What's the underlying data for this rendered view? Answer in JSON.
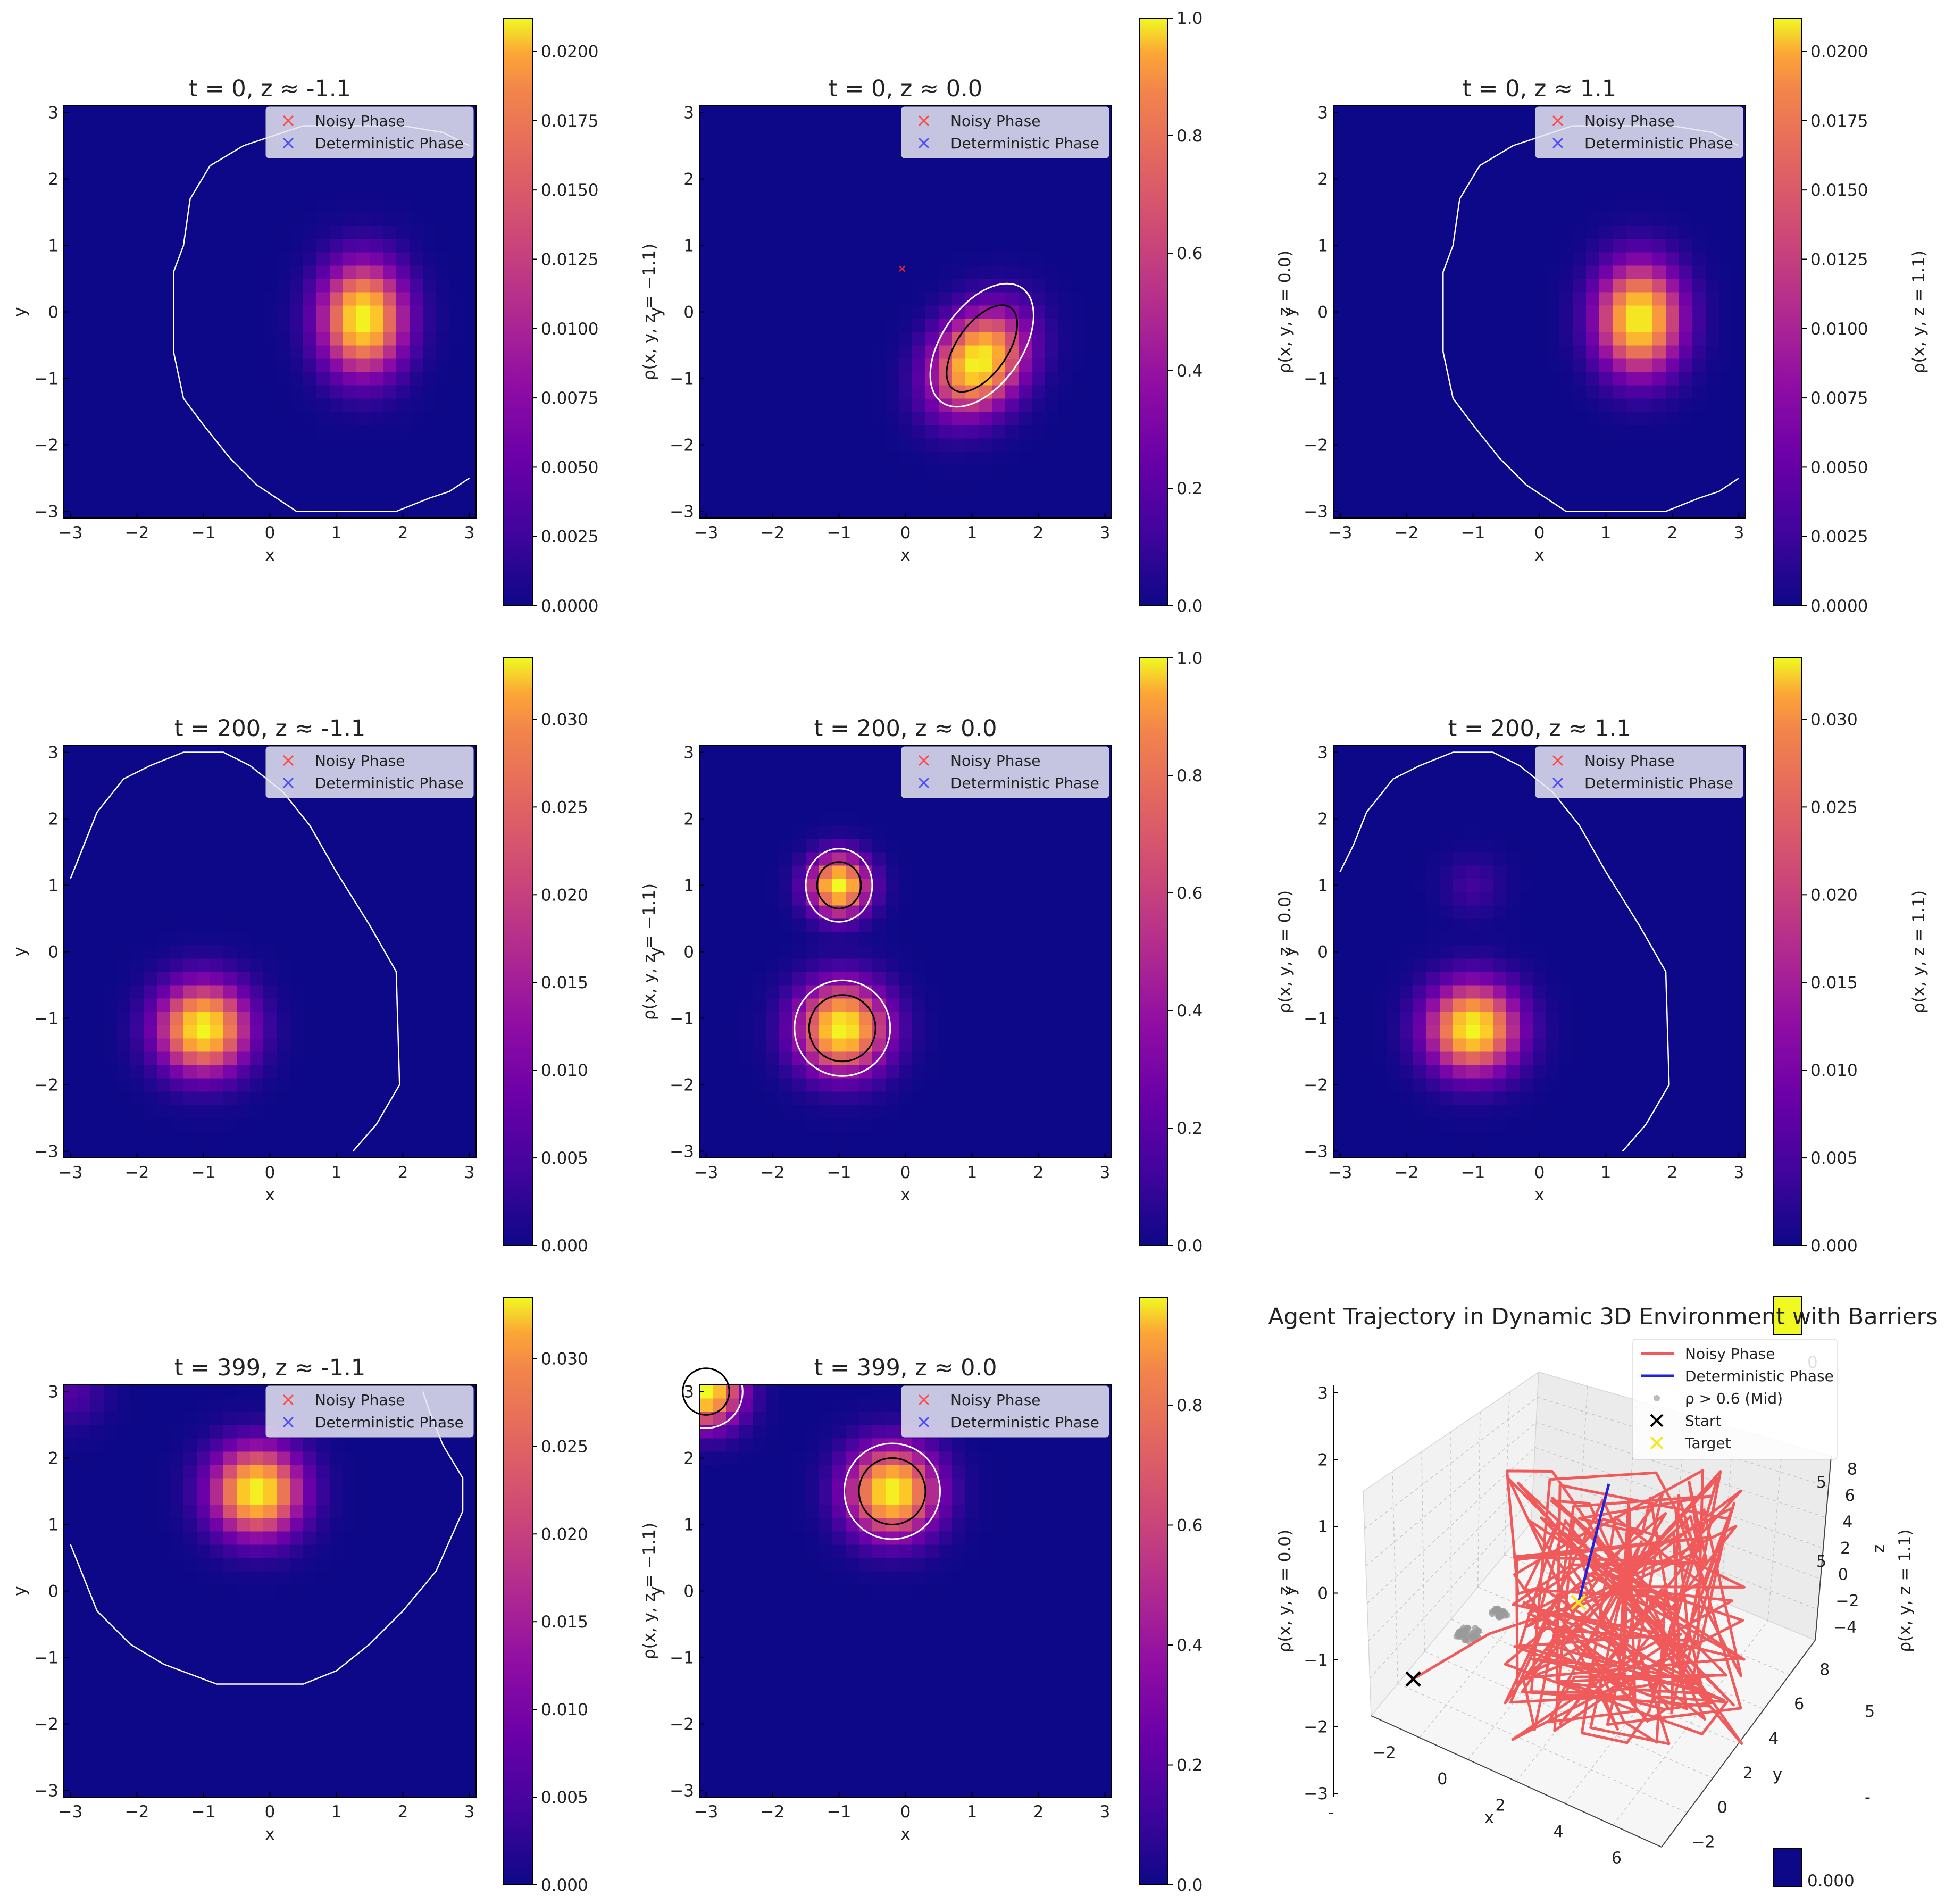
{
  "figure": {
    "colormap": "plasma",
    "legend": [
      {
        "label": "Noisy Phase",
        "color": "#ff4a4a",
        "marker": "x"
      },
      {
        "label": "Deterministic Phase",
        "color": "#4a4aff",
        "marker": "x"
      }
    ],
    "contour_colors": {
      "outer": "#ffffff",
      "inner": "#000000"
    },
    "barrier_color": "#ffffff"
  },
  "chart_data": [
    {
      "id": "t0-zneg",
      "type": "heatmap",
      "title": "t = 0, z ≈ -1.1",
      "xlabel": "x",
      "ylabel": "y",
      "cbar_label": "ρ(x, y, z = −1.1)",
      "xlim": [
        -3.1,
        3.1
      ],
      "ylim": [
        -3.1,
        3.1
      ],
      "xticks": [
        -3,
        -2,
        -1,
        0,
        1,
        2,
        3
      ],
      "yticks": [
        -3,
        -2,
        -1,
        0,
        1,
        2,
        3
      ],
      "cbar_range": [
        0,
        0.0212
      ],
      "cbar_ticks": [
        "0.0000",
        "0.0025",
        "0.0050",
        "0.0075",
        "0.0100",
        "0.0125",
        "0.0150",
        "0.0175",
        "0.0200"
      ],
      "blobs": [
        {
          "cx": 1.4,
          "cy": -0.1,
          "sx": 0.42,
          "sy": 0.55,
          "amp": 0.0212
        }
      ],
      "barrier": [
        [
          1.9,
          -3.0
        ],
        [
          0.4,
          -3.0
        ],
        [
          -0.2,
          -2.6
        ],
        [
          -0.6,
          -2.2
        ],
        [
          -1.0,
          -1.7
        ],
        [
          -1.3,
          -1.3
        ],
        [
          -1.45,
          -0.6
        ],
        [
          -1.45,
          0.6
        ],
        [
          -1.3,
          1.0
        ],
        [
          -1.2,
          1.7
        ],
        [
          -0.9,
          2.2
        ],
        [
          -0.4,
          2.5
        ],
        [
          0.5,
          2.8
        ],
        [
          2.0,
          2.8
        ],
        [
          2.6,
          2.7
        ],
        [
          3.0,
          2.5
        ]
      ],
      "barrier2": [
        [
          1.9,
          -3.0
        ],
        [
          2.4,
          -2.8
        ],
        [
          2.7,
          -2.7
        ],
        [
          3.0,
          -2.5
        ]
      ],
      "contours": []
    },
    {
      "id": "t0-z0",
      "type": "heatmap",
      "title": "t = 0, z ≈ 0.0",
      "xlabel": "x",
      "ylabel": "y",
      "cbar_label": "ρ(x, y, z = 0.0)",
      "xlim": [
        -3.1,
        3.1
      ],
      "ylim": [
        -3.1,
        3.1
      ],
      "xticks": [
        -3,
        -2,
        -1,
        0,
        1,
        2,
        3
      ],
      "yticks": [
        -3,
        -2,
        -1,
        0,
        1,
        2,
        3
      ],
      "cbar_range": [
        0,
        1.0
      ],
      "cbar_ticks": [
        "0.0",
        "0.2",
        "0.4",
        "0.6",
        "0.8",
        "1.0"
      ],
      "blobs": [
        {
          "cx": 1.1,
          "cy": -0.75,
          "sx": 0.42,
          "sy": 0.55,
          "amp": 1.0,
          "rot": -35
        }
      ],
      "contours": [
        {
          "color": "outer",
          "cx": 1.15,
          "cy": -0.5,
          "rx": 0.6,
          "ry": 1.05,
          "rot": 35
        },
        {
          "color": "inner",
          "cx": 1.15,
          "cy": -0.55,
          "rx": 0.38,
          "ry": 0.75,
          "rot": 35
        }
      ],
      "noisy_marker": [
        -0.05,
        0.65
      ]
    },
    {
      "id": "t0-zpos",
      "type": "heatmap",
      "title": "t = 0, z ≈ 1.1",
      "xlabel": "x",
      "ylabel": "y",
      "cbar_label": "ρ(x, y, z = 1.1)",
      "xlim": [
        -3.1,
        3.1
      ],
      "ylim": [
        -3.1,
        3.1
      ],
      "xticks": [
        -3,
        -2,
        -1,
        0,
        1,
        2,
        3
      ],
      "yticks": [
        -3,
        -2,
        -1,
        0,
        1,
        2,
        3
      ],
      "cbar_range": [
        0,
        0.0212
      ],
      "cbar_ticks": [
        "0.0000",
        "0.0025",
        "0.0050",
        "0.0075",
        "0.0100",
        "0.0125",
        "0.0150",
        "0.0175",
        "0.0200"
      ],
      "blobs": [
        {
          "cx": 1.5,
          "cy": -0.1,
          "sx": 0.42,
          "sy": 0.55,
          "amp": 0.0212
        }
      ],
      "barrier": [
        [
          1.9,
          -3.0
        ],
        [
          0.4,
          -3.0
        ],
        [
          -0.2,
          -2.6
        ],
        [
          -0.6,
          -2.2
        ],
        [
          -1.0,
          -1.7
        ],
        [
          -1.3,
          -1.3
        ],
        [
          -1.45,
          -0.6
        ],
        [
          -1.45,
          0.6
        ],
        [
          -1.3,
          1.0
        ],
        [
          -1.2,
          1.7
        ],
        [
          -0.9,
          2.2
        ],
        [
          -0.4,
          2.5
        ],
        [
          0.5,
          2.8
        ],
        [
          2.0,
          2.8
        ],
        [
          2.6,
          2.7
        ],
        [
          3.0,
          2.5
        ]
      ],
      "barrier2": [
        [
          1.9,
          -3.0
        ],
        [
          2.4,
          -2.8
        ],
        [
          2.7,
          -2.7
        ],
        [
          3.0,
          -2.5
        ]
      ],
      "contours": []
    },
    {
      "id": "t200-zneg",
      "type": "heatmap",
      "title": "t = 200, z ≈ -1.1",
      "xlabel": "x",
      "ylabel": "y",
      "cbar_label": "ρ(x, y, z = −1.1)",
      "xlim": [
        -3.1,
        3.1
      ],
      "ylim": [
        -3.1,
        3.1
      ],
      "xticks": [
        -3,
        -2,
        -1,
        0,
        1,
        2,
        3
      ],
      "yticks": [
        -3,
        -2,
        -1,
        0,
        1,
        2,
        3
      ],
      "cbar_range": [
        0,
        0.0335
      ],
      "cbar_ticks": [
        "0.000",
        "0.005",
        "0.010",
        "0.015",
        "0.020",
        "0.025",
        "0.030"
      ],
      "blobs": [
        {
          "cx": -1.0,
          "cy": -1.15,
          "sx": 0.45,
          "sy": 0.45,
          "amp": 0.0335
        }
      ],
      "barrier": [
        [
          -3.0,
          1.1
        ],
        [
          -2.8,
          1.6
        ],
        [
          -2.6,
          2.1
        ],
        [
          -2.2,
          2.6
        ],
        [
          -1.8,
          2.8
        ],
        [
          -1.3,
          3.0
        ],
        [
          -0.7,
          3.0
        ],
        [
          -0.3,
          2.8
        ],
        [
          0.2,
          2.4
        ],
        [
          0.6,
          1.9
        ],
        [
          1.0,
          1.2
        ],
        [
          1.5,
          0.4
        ],
        [
          1.9,
          -0.3
        ],
        [
          1.95,
          -2.0
        ],
        [
          1.6,
          -2.6
        ],
        [
          1.25,
          -3.0
        ]
      ],
      "contours": []
    },
    {
      "id": "t200-z0",
      "type": "heatmap",
      "title": "t = 200, z ≈ 0.0",
      "xlabel": "x",
      "ylabel": "y",
      "cbar_label": "ρ(x, y, z = 0.0)",
      "xlim": [
        -3.1,
        3.1
      ],
      "ylim": [
        -3.1,
        3.1
      ],
      "xticks": [
        -3,
        -2,
        -1,
        0,
        1,
        2,
        3
      ],
      "yticks": [
        -3,
        -2,
        -1,
        0,
        1,
        2,
        3
      ],
      "cbar_range": [
        0,
        1.0
      ],
      "cbar_ticks": [
        "0.0",
        "0.2",
        "0.4",
        "0.6",
        "0.8",
        "1.0"
      ],
      "blobs": [
        {
          "cx": -1.0,
          "cy": 1.0,
          "sx": 0.3,
          "sy": 0.3,
          "amp": 1.0
        },
        {
          "cx": -0.95,
          "cy": -1.15,
          "sx": 0.45,
          "sy": 0.45,
          "amp": 1.0
        }
      ],
      "contours": [
        {
          "color": "outer",
          "cx": -1.0,
          "cy": 1.0,
          "rx": 0.5,
          "ry": 0.55,
          "rot": 0
        },
        {
          "color": "inner",
          "cx": -1.0,
          "cy": 1.0,
          "rx": 0.33,
          "ry": 0.35,
          "rot": 0
        },
        {
          "color": "outer",
          "cx": -0.95,
          "cy": -1.15,
          "rx": 0.72,
          "ry": 0.72,
          "rot": 0
        },
        {
          "color": "inner",
          "cx": -0.95,
          "cy": -1.15,
          "rx": 0.5,
          "ry": 0.5,
          "rot": 0
        }
      ]
    },
    {
      "id": "t200-zpos",
      "type": "heatmap",
      "title": "t = 200, z ≈ 1.1",
      "xlabel": "x",
      "ylabel": "y",
      "cbar_label": "ρ(x, y, z = 1.1)",
      "xlim": [
        -3.1,
        3.1
      ],
      "ylim": [
        -3.1,
        3.1
      ],
      "xticks": [
        -3,
        -2,
        -1,
        0,
        1,
        2,
        3
      ],
      "yticks": [
        -3,
        -2,
        -1,
        0,
        1,
        2,
        3
      ],
      "cbar_range": [
        0,
        0.0335
      ],
      "cbar_ticks": [
        "0.000",
        "0.005",
        "0.010",
        "0.015",
        "0.020",
        "0.025",
        "0.030"
      ],
      "blobs": [
        {
          "cx": -1.0,
          "cy": -1.15,
          "sx": 0.45,
          "sy": 0.45,
          "amp": 0.0335
        },
        {
          "cx": -1.0,
          "cy": 1.0,
          "sx": 0.3,
          "sy": 0.3,
          "amp": 0.0035
        }
      ],
      "barrier": [
        [
          -3.0,
          1.2
        ],
        [
          -2.8,
          1.6
        ],
        [
          -2.6,
          2.1
        ],
        [
          -2.2,
          2.6
        ],
        [
          -1.8,
          2.8
        ],
        [
          -1.3,
          3.0
        ],
        [
          -0.7,
          3.0
        ],
        [
          -0.3,
          2.8
        ],
        [
          0.2,
          2.4
        ],
        [
          0.6,
          1.9
        ],
        [
          1.0,
          1.2
        ],
        [
          1.5,
          0.4
        ],
        [
          1.9,
          -0.3
        ],
        [
          1.95,
          -2.0
        ],
        [
          1.6,
          -2.6
        ],
        [
          1.25,
          -3.0
        ]
      ],
      "contours": []
    },
    {
      "id": "t399-zneg",
      "type": "heatmap",
      "title": "t = 399, z ≈ -1.1",
      "xlabel": "x",
      "ylabel": "y",
      "cbar_label": "ρ(x, y, z = −1.1)",
      "xlim": [
        -3.1,
        3.1
      ],
      "ylim": [
        -3.1,
        3.1
      ],
      "xticks": [
        -3,
        -2,
        -1,
        0,
        1,
        2,
        3
      ],
      "yticks": [
        -3,
        -2,
        -1,
        0,
        1,
        2,
        3
      ],
      "cbar_range": [
        0,
        0.0335
      ],
      "cbar_ticks": [
        "0.000",
        "0.005",
        "0.010",
        "0.015",
        "0.020",
        "0.025",
        "0.030"
      ],
      "blobs": [
        {
          "cx": -0.2,
          "cy": 1.5,
          "sx": 0.45,
          "sy": 0.45,
          "amp": 0.0335
        },
        {
          "cx": -3.0,
          "cy": 3.0,
          "sx": 0.35,
          "sy": 0.35,
          "amp": 0.0045
        }
      ],
      "barrier": [
        [
          -3.0,
          0.7
        ],
        [
          -2.8,
          0.2
        ],
        [
          -2.6,
          -0.3
        ],
        [
          -2.1,
          -0.8
        ],
        [
          -1.6,
          -1.1
        ],
        [
          -0.8,
          -1.4
        ],
        [
          0.5,
          -1.4
        ],
        [
          1.0,
          -1.2
        ],
        [
          1.5,
          -0.8
        ],
        [
          2.0,
          -0.3
        ],
        [
          2.5,
          0.3
        ],
        [
          2.9,
          1.2
        ],
        [
          2.9,
          1.7
        ],
        [
          2.6,
          2.2
        ],
        [
          2.4,
          2.7
        ],
        [
          2.3,
          3.0
        ]
      ],
      "contours": []
    },
    {
      "id": "t399-z0",
      "type": "heatmap",
      "title": "t = 399, z ≈ 0.0",
      "xlabel": "x",
      "ylabel": "y",
      "cbar_label": "ρ(x, y, z = 0.0)",
      "xlim": [
        -3.1,
        3.1
      ],
      "ylim": [
        -3.1,
        3.1
      ],
      "xticks": [
        -3,
        -2,
        -1,
        0,
        1,
        2,
        3
      ],
      "yticks": [
        -3,
        -2,
        -1,
        0,
        1,
        2,
        3
      ],
      "cbar_range": [
        0,
        0.98
      ],
      "cbar_ticks": [
        "0.0",
        "0.2",
        "0.4",
        "0.6",
        "0.8"
      ],
      "blobs": [
        {
          "cx": -0.2,
          "cy": 1.5,
          "sx": 0.45,
          "sy": 0.45,
          "amp": 0.98
        },
        {
          "cx": -3.0,
          "cy": 3.0,
          "sx": 0.35,
          "sy": 0.35,
          "amp": 0.98
        }
      ],
      "contours": [
        {
          "color": "outer",
          "cx": -0.2,
          "cy": 1.5,
          "rx": 0.72,
          "ry": 0.72,
          "rot": 0
        },
        {
          "color": "inner",
          "cx": -0.2,
          "cy": 1.5,
          "rx": 0.5,
          "ry": 0.5,
          "rot": 0
        },
        {
          "color": "outer",
          "cx": -3.0,
          "cy": 3.0,
          "rx": 0.55,
          "ry": 0.55,
          "rot": 0
        },
        {
          "color": "inner",
          "cx": -3.0,
          "cy": 3.0,
          "rx": 0.35,
          "ry": 0.35,
          "rot": 0
        }
      ]
    },
    {
      "id": "trajectory-3d",
      "type": "line",
      "title": "Agent Trajectory in Dynamic 3D Environment with Barriers",
      "xlabel": "x",
      "ylabel": "y",
      "zlabel": "z",
      "overlay_ylabel": "y",
      "overlay_cbar_label": "ρ(x, y, z = 1.1)",
      "overlay_yticks": [
        "3",
        "2",
        "1",
        "0",
        "−1",
        "−2",
        "−3"
      ],
      "overlay_cbar_ticks": [
        "0.000"
      ],
      "overlay_cbar_top_tick": "0",
      "x_ticks": [
        "−2",
        "0",
        "2",
        "4",
        "6"
      ],
      "y_ticks": [
        "−2",
        "0",
        "2",
        "4",
        "6",
        "8"
      ],
      "z_ticks": [
        "8",
        "6",
        "4",
        "2",
        "0",
        "−2",
        "−4"
      ],
      "clipped_tick_fragments": [
        "5",
        "5",
        "0",
        "5",
        "-",
        "0"
      ],
      "legend": [
        {
          "label": "Noisy Phase",
          "color": "#f05a5a",
          "kind": "line"
        },
        {
          "label": "Deterministic Phase",
          "color": "#2222dd",
          "kind": "line"
        },
        {
          "label": "ρ > 0.6 (Mid)",
          "color": "#bbbbbb",
          "kind": "dot"
        },
        {
          "label": "Start",
          "color": "#000000",
          "kind": "x"
        },
        {
          "label": "Target",
          "color": "#f5e81a",
          "kind": "x"
        }
      ],
      "start": [
        -3.0,
        3.0,
        0.0
      ],
      "target": [
        1.5,
        2.0,
        0.0
      ]
    }
  ]
}
